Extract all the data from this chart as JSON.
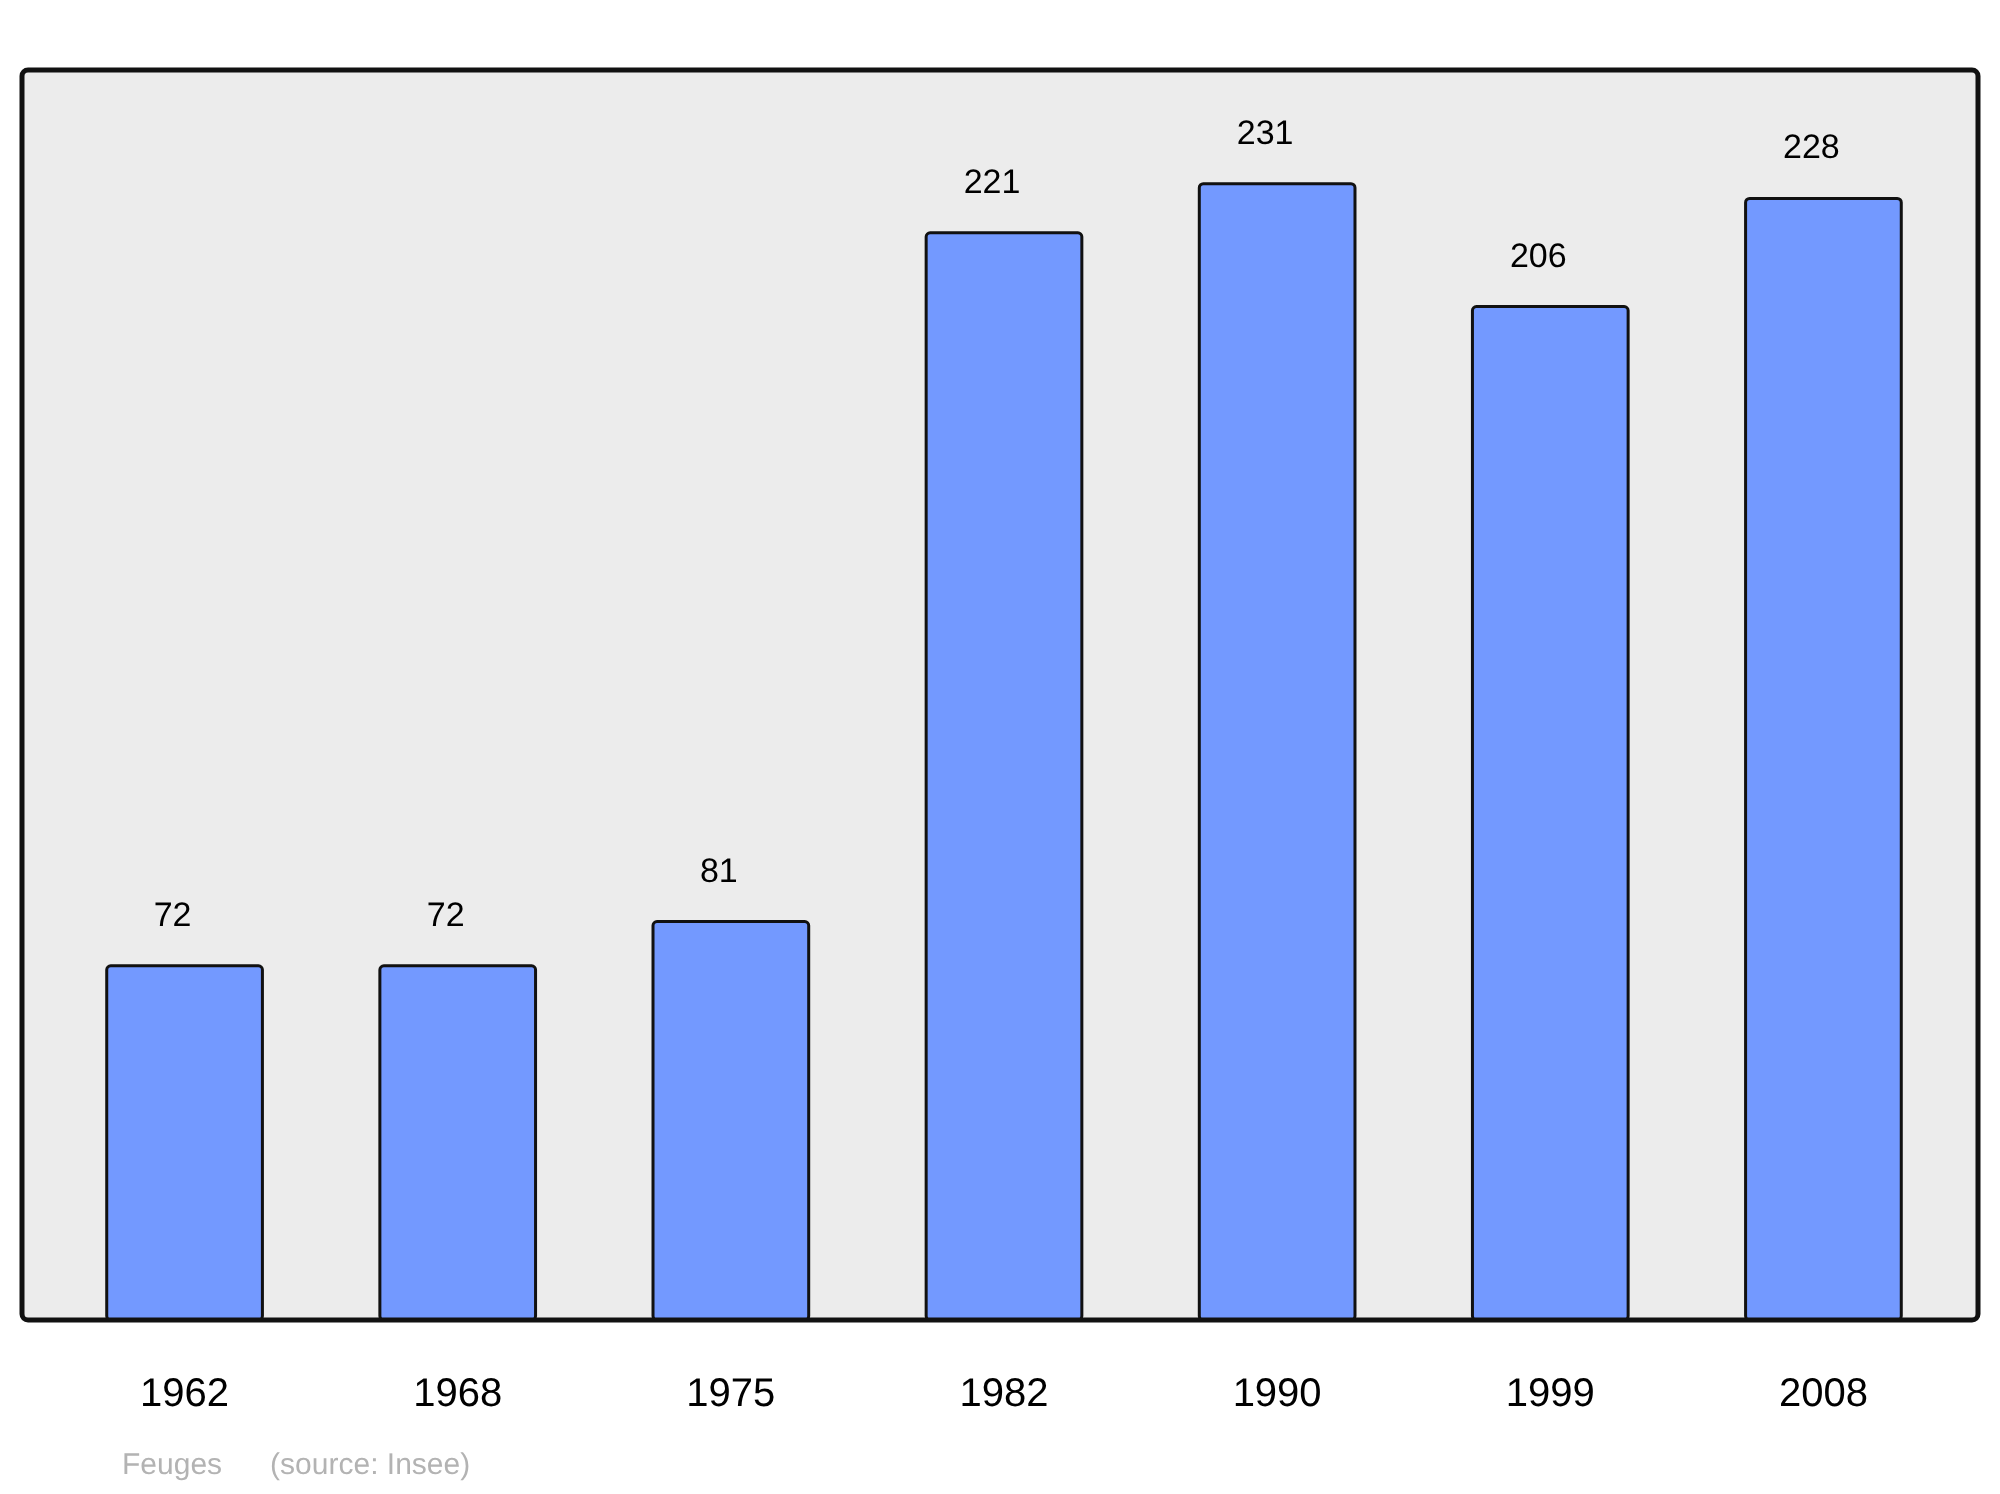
{
  "chart_data": {
    "type": "bar",
    "categories": [
      "1962",
      "1968",
      "1975",
      "1982",
      "1990",
      "1999",
      "2008"
    ],
    "values": [
      72,
      72,
      81,
      221,
      231,
      206,
      228
    ],
    "color": "#7399ff",
    "data_labels": true,
    "annotations": [
      "Feuges",
      "(source: Insee)"
    ]
  }
}
